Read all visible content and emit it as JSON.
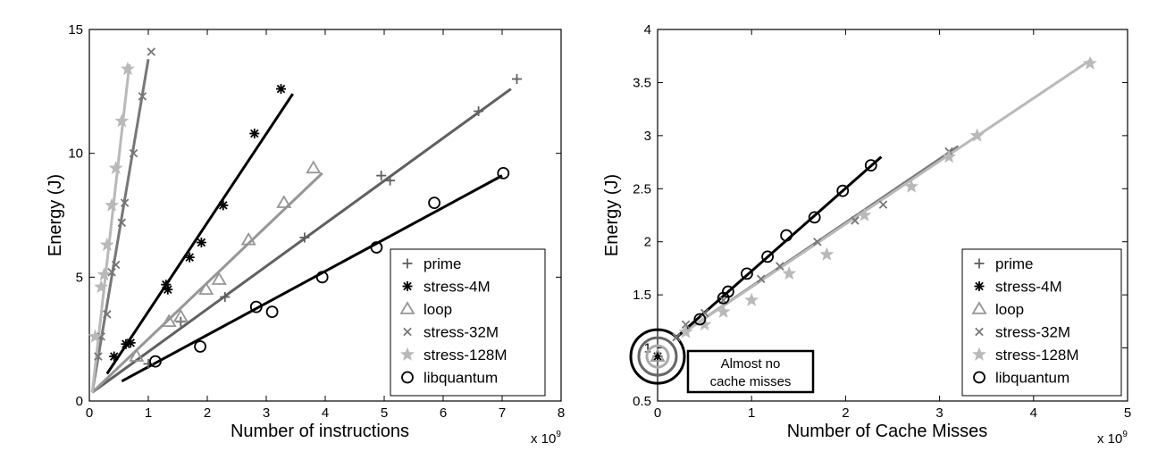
{
  "chart_data": [
    {
      "type": "scatter",
      "xlabel": "Number of instructions",
      "ylabel": "Energy (J)",
      "x_multiplier": "x 10",
      "x_multiplier_exp": "9",
      "xlim": [
        0,
        8
      ],
      "ylim": [
        0,
        15
      ],
      "xticks": [
        "0",
        "1",
        "2",
        "3",
        "4",
        "5",
        "6",
        "7",
        "8"
      ],
      "yticks": [
        "0",
        "5",
        "10",
        "15"
      ],
      "legend_position": "lower-right",
      "series": [
        {
          "name": "prime",
          "marker": "plus",
          "color": "#606060",
          "x": [
            1.0,
            1.55,
            2.3,
            3.65,
            4.95,
            5.1,
            6.6,
            7.25
          ],
          "y": [
            1.5,
            3.2,
            4.2,
            6.6,
            9.1,
            8.9,
            11.7,
            13.0
          ],
          "fit": [
            [
              0.05,
              0.35
            ],
            [
              7.15,
              12.6
            ]
          ]
        },
        {
          "name": "stress-4M",
          "marker": "asterisk",
          "color": "#000000",
          "x": [
            0.42,
            0.62,
            0.7,
            1.3,
            1.33,
            1.7,
            1.9,
            2.27,
            2.8,
            3.25
          ],
          "y": [
            1.8,
            2.3,
            2.35,
            4.7,
            4.5,
            5.8,
            6.4,
            7.9,
            10.8,
            12.6
          ],
          "fit": [
            [
              0.3,
              1.1
            ],
            [
              3.45,
              12.4
            ]
          ]
        },
        {
          "name": "loop",
          "marker": "triangle",
          "color": "#969696",
          "x": [
            0.8,
            1.35,
            1.55,
            1.98,
            2.2,
            2.7,
            3.3,
            3.8
          ],
          "y": [
            1.8,
            3.2,
            3.4,
            4.5,
            4.9,
            6.5,
            8.0,
            9.4
          ],
          "fit": [
            [
              0.05,
              0.35
            ],
            [
              3.95,
              9.2
            ]
          ]
        },
        {
          "name": "stress-32M",
          "marker": "cross",
          "color": "#777777",
          "x": [
            0.15,
            0.2,
            0.3,
            0.38,
            0.45,
            0.55,
            0.6,
            0.75,
            0.9,
            1.05
          ],
          "y": [
            1.8,
            2.6,
            3.5,
            5.2,
            5.5,
            7.2,
            8.0,
            10.0,
            12.3,
            14.1
          ],
          "fit": [
            [
              0.05,
              0.35
            ],
            [
              1.0,
              13.8
            ]
          ]
        },
        {
          "name": "stress-128M",
          "marker": "star",
          "color": "#b9b9b9",
          "x": [
            0.1,
            0.2,
            0.25,
            0.3,
            0.38,
            0.45,
            0.55,
            0.65
          ],
          "y": [
            2.6,
            4.6,
            5.1,
            6.3,
            7.9,
            9.4,
            11.3,
            13.4
          ],
          "fit": [
            [
              0.05,
              0.35
            ],
            [
              0.68,
              13.6
            ]
          ]
        },
        {
          "name": "libquantum",
          "marker": "circle",
          "color": "#000000",
          "x": [
            1.12,
            1.88,
            2.83,
            3.1,
            3.95,
            4.87,
            5.85,
            7.02
          ],
          "y": [
            1.6,
            2.2,
            3.8,
            3.6,
            5.0,
            6.2,
            8.0,
            9.2
          ],
          "fit": [
            [
              0.55,
              0.8
            ],
            [
              7.0,
              9.1
            ]
          ]
        }
      ]
    },
    {
      "type": "scatter",
      "xlabel": "Number of Cache Misses",
      "ylabel": "Energy (J)",
      "x_multiplier": "x 10",
      "x_multiplier_exp": "9",
      "xlim": [
        0,
        5
      ],
      "ylim": [
        0.5,
        4
      ],
      "xticks": [
        "0",
        "1",
        "2",
        "3",
        "4",
        "5"
      ],
      "yticks": [
        "0.5",
        "1",
        "1.5",
        "2",
        "2.5",
        "3",
        "3.5",
        "4"
      ],
      "legend_position": "lower-right",
      "annotation": [
        "Almost no",
        "cache misses"
      ],
      "series": [
        {
          "name": "prime",
          "marker": "plus",
          "color": "#606060",
          "x": [
            0.0
          ],
          "y": [
            0.92
          ],
          "fit": null
        },
        {
          "name": "stress-4M",
          "marker": "asterisk",
          "color": "#000000",
          "x": [
            0.0
          ],
          "y": [
            0.92
          ],
          "fit": null
        },
        {
          "name": "loop",
          "marker": "triangle",
          "color": "#969696",
          "x": [
            0.0
          ],
          "y": [
            0.92
          ],
          "fit": null
        },
        {
          "name": "stress-32M",
          "marker": "cross",
          "color": "#777777",
          "x": [
            0.2,
            0.3,
            0.5,
            0.7,
            1.1,
            1.3,
            1.7,
            2.1,
            2.4,
            3.1
          ],
          "y": [
            1.1,
            1.22,
            1.33,
            1.45,
            1.65,
            1.77,
            2.0,
            2.2,
            2.35,
            2.85
          ],
          "fit": [
            [
              0.2,
              1.1
            ],
            [
              3.2,
              2.9
            ]
          ]
        },
        {
          "name": "stress-128M",
          "marker": "star",
          "color": "#b9b9b9",
          "x": [
            0.3,
            0.5,
            0.7,
            1.0,
            1.4,
            1.8,
            2.2,
            2.7,
            3.1,
            3.4,
            4.6
          ],
          "y": [
            1.15,
            1.22,
            1.34,
            1.45,
            1.7,
            1.88,
            2.25,
            2.52,
            2.8,
            3.0,
            3.68
          ],
          "fit": [
            [
              0.2,
              1.1
            ],
            [
              4.62,
              3.72
            ]
          ]
        },
        {
          "name": "libquantum",
          "marker": "circle",
          "color": "#000000",
          "x": [
            0.45,
            0.7,
            0.75,
            0.95,
            1.17,
            1.37,
            1.67,
            1.97,
            2.27
          ],
          "y": [
            1.27,
            1.47,
            1.53,
            1.7,
            1.86,
            2.06,
            2.23,
            2.48,
            2.72
          ],
          "fit": [
            [
              0.2,
              1.1
            ],
            [
              2.38,
              2.8
            ]
          ]
        }
      ]
    }
  ]
}
